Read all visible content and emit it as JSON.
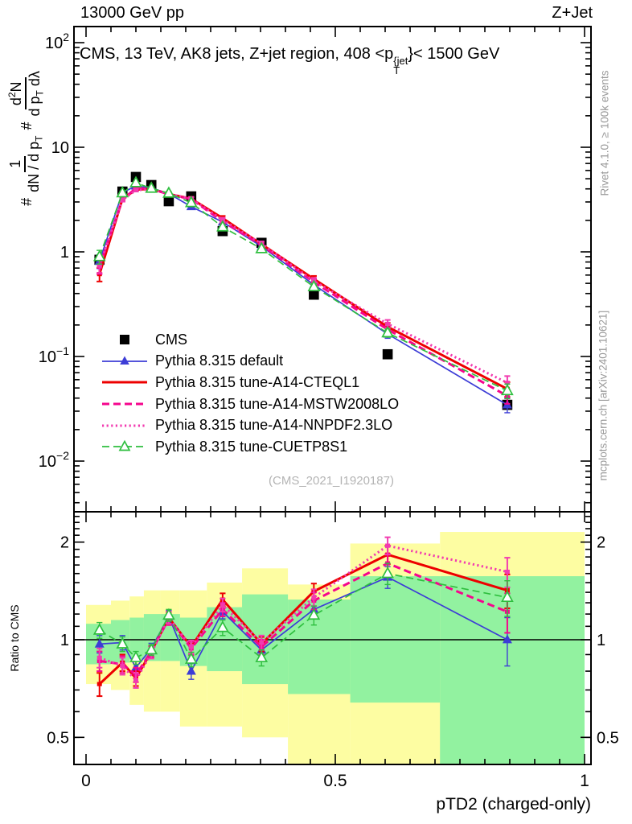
{
  "header": {
    "left_title": "13000 GeV pp",
    "right_title": "Z+Jet"
  },
  "plot_title": {
    "prefix": "CMS, 13 TeV, AK8 jets, Z+jet region, 408 <p",
    "sup": "{jet",
    "sub": "T",
    "suffix": "}< 1500 GeV"
  },
  "ylabel_main": {
    "hash1": "#",
    "frac1": {
      "num": "1",
      "den_text": "dN / d p",
      "den_sub": "T"
    },
    "hash2": "#",
    "frac2": {
      "num_a": "d",
      "num_sup": "2",
      "num_b": "N",
      "den_a": "d p",
      "den_sub": "T",
      "den_b": " dλ"
    }
  },
  "ratio_ylabel": "Ratio to CMS",
  "xlabel": "pTD2 (charged-only)",
  "watermark": "(CMS_2021_I1920187)",
  "side_notes": {
    "top": "Rivet 4.1.0, ≥ 100k events",
    "bottom": "mcplots.cern.ch [arXiv:2401.10621]"
  },
  "chart_data": {
    "type": "line",
    "title": "CMS, 13 TeV, AK8 jets, Z+jet region, 408 < pT(jet) < 1500 GeV",
    "xlabel": "pTD2 (charged-only)",
    "x_range": [
      -0.024,
      1.013
    ],
    "x_ticks": [
      {
        "v": 0,
        "label": "0"
      },
      {
        "v": 0.5,
        "label": "0.5"
      },
      {
        "v": 1,
        "label": "1"
      }
    ],
    "x_minor_step": 0.05,
    "main_panel": {
      "y_scale": "log",
      "y_range": [
        0.0033,
        142
      ],
      "y_ticks": [
        {
          "v": 100,
          "base": "10",
          "exp": "2"
        },
        {
          "v": 10,
          "base": "10",
          "exp": ""
        },
        {
          "v": 1,
          "base": "1",
          "exp": ""
        },
        {
          "v": 0.1,
          "base": "10",
          "exp": "−1"
        },
        {
          "v": 0.01,
          "base": "10",
          "exp": "−2"
        }
      ]
    },
    "ratio_panel": {
      "y_scale": "log",
      "y_range": [
        0.41,
        2.48
      ],
      "ref_line": 1,
      "y_ticks": [
        {
          "v": 2,
          "label": "2"
        },
        {
          "v": 1,
          "label": "1"
        },
        {
          "v": 0.5,
          "label": "0.5"
        }
      ],
      "bands": {
        "edges": [
          0,
          0.05,
          0.0875,
          0.116,
          0.1485,
          0.1885,
          0.2425,
          0.313,
          0.405,
          0.53,
          0.71,
          1.0
        ],
        "yellow_color": "#fdfda2",
        "green_color": "#92f2a0",
        "yellow": [
          [
            0.73,
            1.28
          ],
          [
            0.7,
            1.32
          ],
          [
            0.63,
            1.36
          ],
          [
            0.6,
            1.42
          ],
          [
            0.6,
            1.42
          ],
          [
            0.54,
            1.42
          ],
          [
            0.54,
            1.5
          ],
          [
            0.5,
            1.66
          ],
          [
            0.4,
            1.48
          ],
          [
            0.4,
            1.98
          ],
          [
            0.4,
            2.15
          ]
        ],
        "green": [
          [
            0.84,
            1.12
          ],
          [
            0.85,
            1.15
          ],
          [
            0.87,
            1.17
          ],
          [
            0.86,
            1.2
          ],
          [
            0.86,
            1.2
          ],
          [
            0.83,
            1.17
          ],
          [
            0.8,
            1.26
          ],
          [
            0.73,
            1.38
          ],
          [
            0.68,
            1.33
          ],
          [
            0.64,
            1.57
          ],
          [
            0.4,
            1.57
          ]
        ]
      }
    },
    "bins_x": [
      0.027,
      0.073,
      0.1,
      0.131,
      0.166,
      0.211,
      0.274,
      0.352,
      0.457,
      0.605,
      0.845
    ],
    "cms": {
      "label": "CMS",
      "color": "#000000",
      "marker": "square",
      "values": [
        0.84,
        3.77,
        5.2,
        4.35,
        3.05,
        3.39,
        1.58,
        1.22,
        0.39,
        0.105,
        0.0345
      ],
      "rel_err": [
        0.04,
        0.03,
        0.03,
        0.03,
        0.03,
        0.03,
        0.03,
        0.04,
        0.05,
        0.06,
        0.09
      ]
    },
    "series": [
      {
        "label": "Pythia 8.315 default",
        "color": "#3d3dd6",
        "line": "solid",
        "width": 1.7,
        "marker": "triangle-filled",
        "values": [
          0.815,
          3.69,
          4.26,
          4.09,
          3.6,
          2.71,
          1.93,
          1.13,
          0.484,
          0.164,
          0.0345
        ],
        "ratio": [
          0.97,
          0.98,
          0.82,
          0.94,
          1.18,
          0.8,
          1.22,
          0.93,
          1.24,
          1.56,
          1.0
        ]
      },
      {
        "label": "Pythia 8.315 tune-A14-CTEQL1",
        "color": "#ed0000",
        "line": "solid",
        "width": 3,
        "marker": "dash",
        "values": [
          0.613,
          3.2,
          3.94,
          4.0,
          3.57,
          3.22,
          2.1,
          1.18,
          0.55,
          0.192,
          0.049
        ],
        "ratio": [
          0.73,
          0.85,
          0.76,
          0.92,
          1.17,
          0.95,
          1.33,
          0.97,
          1.41,
          1.83,
          1.42
        ]
      },
      {
        "label": "Pythia 8.315 tune-A14-MSTW2008LO",
        "color": "#f5058d",
        "line": "dashed",
        "width": 3,
        "marker": "dash",
        "values": [
          0.722,
          3.17,
          4.05,
          4.0,
          3.54,
          3.19,
          1.96,
          1.16,
          0.515,
          0.181,
          0.042
        ],
        "ratio": [
          0.86,
          0.84,
          0.78,
          0.92,
          1.16,
          0.94,
          1.24,
          0.95,
          1.32,
          1.72,
          1.22
        ]
      },
      {
        "label": "Pythia 8.315 tune-A14-NNPDF2.3LO",
        "color": "#f23bb0",
        "line": "dotted",
        "width": 3,
        "marker": "dash",
        "values": [
          0.739,
          3.13,
          3.89,
          3.96,
          3.57,
          3.22,
          2.02,
          1.2,
          0.527,
          0.205,
          0.056
        ],
        "ratio": [
          0.88,
          0.83,
          0.75,
          0.91,
          1.17,
          0.95,
          1.28,
          0.98,
          1.35,
          1.95,
          1.62
        ]
      },
      {
        "label": "Pythia 8.315 tune-CUETP8S1",
        "color": "#2fbf3f",
        "line": "dashed",
        "width": 1.7,
        "marker": "triangle-open",
        "values": [
          0.899,
          3.66,
          4.57,
          4.05,
          3.63,
          2.95,
          1.73,
          1.07,
          0.464,
          0.168,
          0.047
        ],
        "ratio": [
          1.07,
          0.97,
          0.88,
          0.93,
          1.19,
          0.87,
          1.09,
          0.88,
          1.19,
          1.6,
          1.35
        ]
      }
    ],
    "rel_err_main": [
      0.15,
      0.035,
      0.03,
      0.03,
      0.04,
      0.04,
      0.05,
      0.05,
      0.07,
      0.09,
      0.16
    ],
    "abs_err_ratio": [
      0.06,
      0.05,
      0.04,
      0.035,
      0.05,
      0.045,
      0.06,
      0.05,
      0.08,
      0.12,
      0.17
    ],
    "legend_position": "left-middle",
    "grid": false
  }
}
